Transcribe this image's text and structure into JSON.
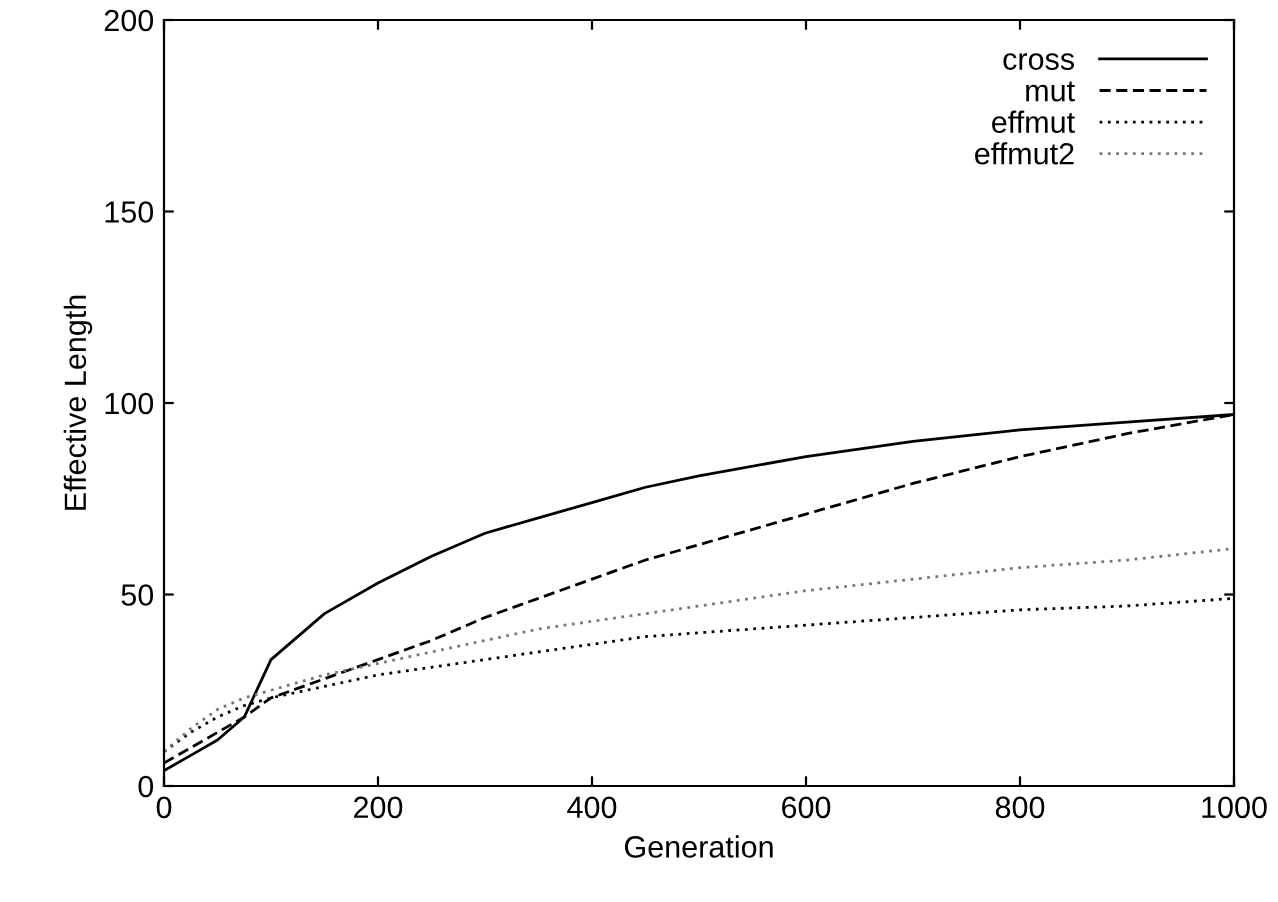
{
  "chart_data": {
    "type": "line",
    "xlabel": "Generation",
    "ylabel": "Effective Length",
    "x": [
      0,
      25,
      50,
      75,
      100,
      150,
      200,
      250,
      300,
      350,
      400,
      450,
      500,
      600,
      700,
      800,
      900,
      1000
    ],
    "series": [
      {
        "name": "cross",
        "color": "#000000",
        "line_style": "solid",
        "values": [
          4,
          8,
          12,
          18,
          33,
          45,
          53,
          60,
          66,
          70,
          74,
          78,
          81,
          86,
          90,
          93,
          95,
          97
        ]
      },
      {
        "name": "mut",
        "color": "#000000",
        "line_style": "dashed",
        "values": [
          6,
          10,
          14,
          18,
          23,
          28,
          33,
          38,
          44,
          49,
          54,
          59,
          63,
          71,
          79,
          86,
          92,
          97
        ]
      },
      {
        "name": "effmut",
        "color": "#000000",
        "line_style": "dotted",
        "values": [
          9,
          14,
          18,
          21,
          23,
          26,
          29,
          31,
          33,
          35,
          37,
          39,
          40,
          42,
          44,
          46,
          47,
          49
        ]
      },
      {
        "name": "effmut2",
        "color": "#777777",
        "line_style": "dotted",
        "values": [
          9,
          15,
          20,
          23,
          25,
          29,
          32,
          35,
          38,
          41,
          43,
          45,
          47,
          51,
          54,
          57,
          59,
          62
        ]
      }
    ],
    "xlim": [
      0,
      1000
    ],
    "xticks": [
      0,
      200,
      400,
      600,
      800,
      1000
    ],
    "ylim": [
      0,
      200
    ],
    "yticks": [
      0,
      50,
      100,
      150,
      200
    ],
    "grid": false,
    "legend": "top right",
    "marker": "none"
  }
}
